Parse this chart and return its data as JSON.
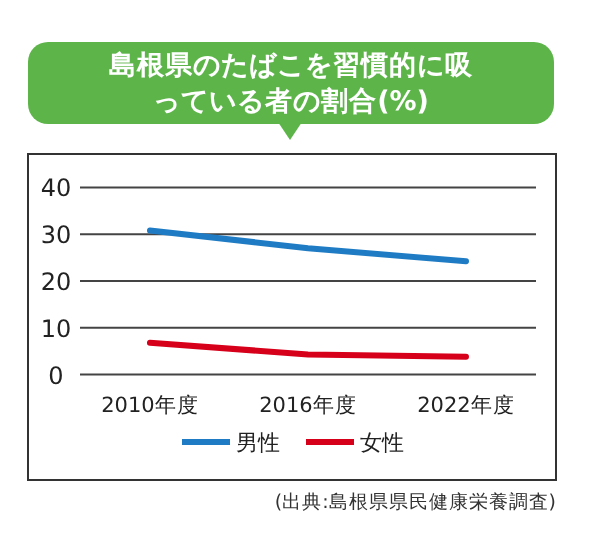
{
  "chart_data": {
    "type": "line",
    "title": "島根県のたばこを習慣的に吸っている者の割合(%)",
    "categories": [
      "2010年度",
      "2016年度",
      "2022年度"
    ],
    "series": [
      {
        "name": "男性",
        "color": "#1f7cc4",
        "values": [
          30.8,
          27,
          24.2
        ]
      },
      {
        "name": "女性",
        "color": "#d7001b",
        "values": [
          6.8,
          4.3,
          3.8
        ]
      }
    ],
    "ylim": [
      0,
      40
    ],
    "yticks": [
      0,
      10,
      20,
      30,
      40
    ],
    "grid": "y",
    "legend": "bottom",
    "annotations": [
      "(出典:島根県県民健康栄養調査)"
    ]
  }
}
